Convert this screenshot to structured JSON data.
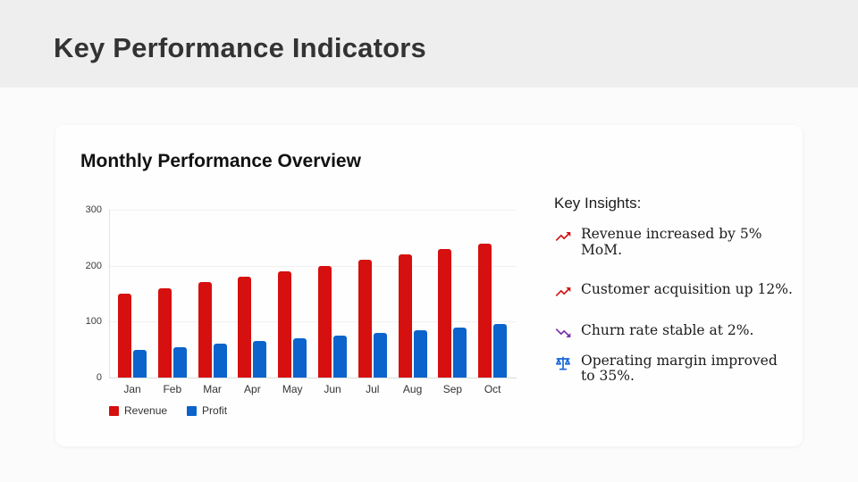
{
  "slide": {
    "title": "Key Performance Indicators"
  },
  "card": {
    "title": "Monthly Performance Overview"
  },
  "chart_data": {
    "type": "bar",
    "title": "Monthly Performance Overview",
    "categories": [
      "Jan",
      "Feb",
      "Mar",
      "Apr",
      "May",
      "Jun",
      "Jul",
      "Aug",
      "Sep",
      "Oct"
    ],
    "series": [
      {
        "name": "Revenue",
        "color": "#d60f0f",
        "values": [
          150,
          160,
          170,
          180,
          190,
          200,
          210,
          220,
          230,
          240
        ]
      },
      {
        "name": "Profit",
        "color": "#0b63cb",
        "values": [
          50,
          55,
          60,
          65,
          70,
          75,
          80,
          85,
          90,
          95
        ]
      }
    ],
    "xlabel": "",
    "ylabel": "",
    "ylim": [
      0,
      300
    ],
    "yticks": [
      0,
      100,
      200,
      300
    ],
    "grid": true,
    "legend_position": "bottom-left"
  },
  "insights": {
    "heading": "Key Insights:",
    "items": [
      {
        "icon": "trending-up-icon",
        "color": "#d31414",
        "text": "Revenue increased by 5% MoM."
      },
      {
        "icon": "trending-up-icon",
        "color": "#d31414",
        "text": "Customer acquisition up 12%."
      },
      {
        "icon": "trending-down-icon",
        "color": "#7d2fae",
        "text": "Churn rate stable at 2%."
      },
      {
        "icon": "balance-icon",
        "color": "#1565d8",
        "text": "Operating margin improved to 35%."
      }
    ]
  }
}
